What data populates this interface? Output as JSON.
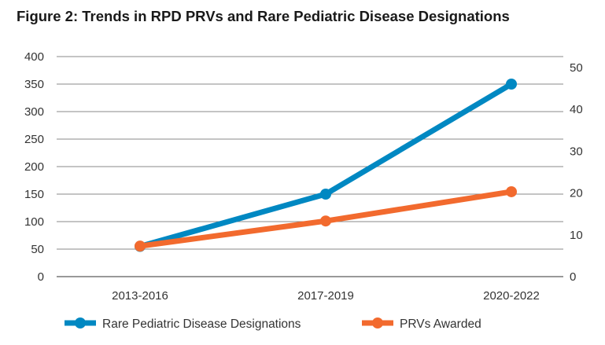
{
  "chart_data": {
    "type": "line",
    "title": "Figure 2: Trends in RPD PRVs and Rare Pediatric Disease Designations",
    "categories": [
      "2013-2016",
      "2017-2019",
      "2020-2022"
    ],
    "y_left": {
      "ticks": [
        0,
        50,
        100,
        150,
        200,
        250,
        300,
        350,
        400
      ],
      "ylim": [
        0,
        400
      ]
    },
    "y_right": {
      "ticks": [
        0,
        10,
        20,
        30,
        40,
        50
      ],
      "ylim": [
        0,
        52.6
      ]
    },
    "grid": true,
    "legend_placement": "bottom",
    "series": [
      {
        "name": "Rare Pediatric Disease Designations",
        "axis": "left",
        "values": [
          55,
          150,
          350
        ],
        "color": "#0088c2"
      },
      {
        "name": "PRVs Awarded",
        "axis": "right",
        "values": [
          7.3,
          13.3,
          20.3
        ],
        "color": "#f26a2e"
      }
    ]
  }
}
